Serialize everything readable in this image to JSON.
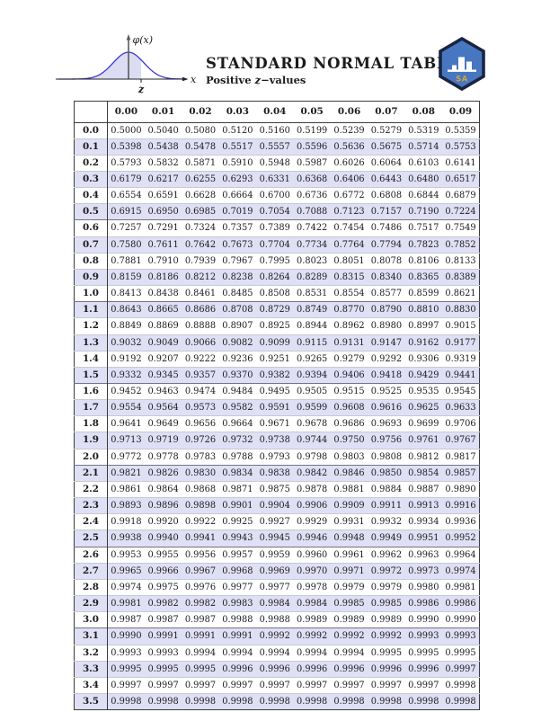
{
  "page": {
    "title": "STANDARD NORMAL TABLE",
    "subtitle_prefix": "Positive ",
    "subtitle_z": "z",
    "subtitle_suffix": "−values"
  },
  "diagram": {
    "y_axis_label": "φ(x)",
    "x_axis_label": "x",
    "z_label": "z"
  },
  "logo": {
    "label": "SA"
  },
  "colors": {
    "text": "#1b1b1b",
    "row-shade": "#dfdff5",
    "shade": "#dcdcf3",
    "curve": "#3a3acd",
    "line-dark": "#3c3c3c",
    "line-mid": "#74747e",
    "line-light": "#c9c9d2",
    "logo-blue": "#4877c2",
    "logo-border": "#1a2440",
    "logo-gold": "#d3a43b"
  },
  "table": {
    "col_headers": [
      "0.00",
      "0.01",
      "0.02",
      "0.03",
      "0.04",
      "0.05",
      "0.06",
      "0.07",
      "0.08",
      "0.09"
    ],
    "rows": [
      {
        "z": "0.0",
        "values": [
          "0.5000",
          "0.5040",
          "0.5080",
          "0.5120",
          "0.5160",
          "0.5199",
          "0.5239",
          "0.5279",
          "0.5319",
          "0.5359"
        ]
      },
      {
        "z": "0.1",
        "values": [
          "0.5398",
          "0.5438",
          "0.5478",
          "0.5517",
          "0.5557",
          "0.5596",
          "0.5636",
          "0.5675",
          "0.5714",
          "0.5753"
        ]
      },
      {
        "z": "0.2",
        "values": [
          "0.5793",
          "0.5832",
          "0.5871",
          "0.5910",
          "0.5948",
          "0.5987",
          "0.6026",
          "0.6064",
          "0.6103",
          "0.6141"
        ]
      },
      {
        "z": "0.3",
        "values": [
          "0.6179",
          "0.6217",
          "0.6255",
          "0.6293",
          "0.6331",
          "0.6368",
          "0.6406",
          "0.6443",
          "0.6480",
          "0.6517"
        ]
      },
      {
        "z": "0.4",
        "values": [
          "0.6554",
          "0.6591",
          "0.6628",
          "0.6664",
          "0.6700",
          "0.6736",
          "0.6772",
          "0.6808",
          "0.6844",
          "0.6879"
        ]
      },
      {
        "z": "0.5",
        "values": [
          "0.6915",
          "0.6950",
          "0.6985",
          "0.7019",
          "0.7054",
          "0.7088",
          "0.7123",
          "0.7157",
          "0.7190",
          "0.7224"
        ]
      },
      {
        "z": "0.6",
        "values": [
          "0.7257",
          "0.7291",
          "0.7324",
          "0.7357",
          "0.7389",
          "0.7422",
          "0.7454",
          "0.7486",
          "0.7517",
          "0.7549"
        ]
      },
      {
        "z": "0.7",
        "values": [
          "0.7580",
          "0.7611",
          "0.7642",
          "0.7673",
          "0.7704",
          "0.7734",
          "0.7764",
          "0.7794",
          "0.7823",
          "0.7852"
        ]
      },
      {
        "z": "0.8",
        "values": [
          "0.7881",
          "0.7910",
          "0.7939",
          "0.7967",
          "0.7995",
          "0.8023",
          "0.8051",
          "0.8078",
          "0.8106",
          "0.8133"
        ]
      },
      {
        "z": "0.9",
        "values": [
          "0.8159",
          "0.8186",
          "0.8212",
          "0.8238",
          "0.8264",
          "0.8289",
          "0.8315",
          "0.8340",
          "0.8365",
          "0.8389"
        ]
      },
      {
        "z": "1.0",
        "values": [
          "0.8413",
          "0.8438",
          "0.8461",
          "0.8485",
          "0.8508",
          "0.8531",
          "0.8554",
          "0.8577",
          "0.8599",
          "0.8621"
        ]
      },
      {
        "z": "1.1",
        "values": [
          "0.8643",
          "0.8665",
          "0.8686",
          "0.8708",
          "0.8729",
          "0.8749",
          "0.8770",
          "0.8790",
          "0.8810",
          "0.8830"
        ]
      },
      {
        "z": "1.2",
        "values": [
          "0.8849",
          "0.8869",
          "0.8888",
          "0.8907",
          "0.8925",
          "0.8944",
          "0.8962",
          "0.8980",
          "0.8997",
          "0.9015"
        ]
      },
      {
        "z": "1.3",
        "values": [
          "0.9032",
          "0.9049",
          "0.9066",
          "0.9082",
          "0.9099",
          "0.9115",
          "0.9131",
          "0.9147",
          "0.9162",
          "0.9177"
        ]
      },
      {
        "z": "1.4",
        "values": [
          "0.9192",
          "0.9207",
          "0.9222",
          "0.9236",
          "0.9251",
          "0.9265",
          "0.9279",
          "0.9292",
          "0.9306",
          "0.9319"
        ]
      },
      {
        "z": "1.5",
        "values": [
          "0.9332",
          "0.9345",
          "0.9357",
          "0.9370",
          "0.9382",
          "0.9394",
          "0.9406",
          "0.9418",
          "0.9429",
          "0.9441"
        ]
      },
      {
        "z": "1.6",
        "values": [
          "0.9452",
          "0.9463",
          "0.9474",
          "0.9484",
          "0.9495",
          "0.9505",
          "0.9515",
          "0.9525",
          "0.9535",
          "0.9545"
        ]
      },
      {
        "z": "1.7",
        "values": [
          "0.9554",
          "0.9564",
          "0.9573",
          "0.9582",
          "0.9591",
          "0.9599",
          "0.9608",
          "0.9616",
          "0.9625",
          "0.9633"
        ]
      },
      {
        "z": "1.8",
        "values": [
          "0.9641",
          "0.9649",
          "0.9656",
          "0.9664",
          "0.9671",
          "0.9678",
          "0.9686",
          "0.9693",
          "0.9699",
          "0.9706"
        ]
      },
      {
        "z": "1.9",
        "values": [
          "0.9713",
          "0.9719",
          "0.9726",
          "0.9732",
          "0.9738",
          "0.9744",
          "0.9750",
          "0.9756",
          "0.9761",
          "0.9767"
        ]
      },
      {
        "z": "2.0",
        "values": [
          "0.9772",
          "0.9778",
          "0.9783",
          "0.9788",
          "0.9793",
          "0.9798",
          "0.9803",
          "0.9808",
          "0.9812",
          "0.9817"
        ]
      },
      {
        "z": "2.1",
        "values": [
          "0.9821",
          "0.9826",
          "0.9830",
          "0.9834",
          "0.9838",
          "0.9842",
          "0.9846",
          "0.9850",
          "0.9854",
          "0.9857"
        ]
      },
      {
        "z": "2.2",
        "values": [
          "0.9861",
          "0.9864",
          "0.9868",
          "0.9871",
          "0.9875",
          "0.9878",
          "0.9881",
          "0.9884",
          "0.9887",
          "0.9890"
        ]
      },
      {
        "z": "2.3",
        "values": [
          "0.9893",
          "0.9896",
          "0.9898",
          "0.9901",
          "0.9904",
          "0.9906",
          "0.9909",
          "0.9911",
          "0.9913",
          "0.9916"
        ]
      },
      {
        "z": "2.4",
        "values": [
          "0.9918",
          "0.9920",
          "0.9922",
          "0.9925",
          "0.9927",
          "0.9929",
          "0.9931",
          "0.9932",
          "0.9934",
          "0.9936"
        ]
      },
      {
        "z": "2.5",
        "values": [
          "0.9938",
          "0.9940",
          "0.9941",
          "0.9943",
          "0.9945",
          "0.9946",
          "0.9948",
          "0.9949",
          "0.9951",
          "0.9952"
        ]
      },
      {
        "z": "2.6",
        "values": [
          "0.9953",
          "0.9955",
          "0.9956",
          "0.9957",
          "0.9959",
          "0.9960",
          "0.9961",
          "0.9962",
          "0.9963",
          "0.9964"
        ]
      },
      {
        "z": "2.7",
        "values": [
          "0.9965",
          "0.9966",
          "0.9967",
          "0.9968",
          "0.9969",
          "0.9970",
          "0.9971",
          "0.9972",
          "0.9973",
          "0.9974"
        ]
      },
      {
        "z": "2.8",
        "values": [
          "0.9974",
          "0.9975",
          "0.9976",
          "0.9977",
          "0.9977",
          "0.9978",
          "0.9979",
          "0.9979",
          "0.9980",
          "0.9981"
        ]
      },
      {
        "z": "2.9",
        "values": [
          "0.9981",
          "0.9982",
          "0.9982",
          "0.9983",
          "0.9984",
          "0.9984",
          "0.9985",
          "0.9985",
          "0.9986",
          "0.9986"
        ]
      },
      {
        "z": "3.0",
        "values": [
          "0.9987",
          "0.9987",
          "0.9987",
          "0.9988",
          "0.9988",
          "0.9989",
          "0.9989",
          "0.9989",
          "0.9990",
          "0.9990"
        ]
      },
      {
        "z": "3.1",
        "values": [
          "0.9990",
          "0.9991",
          "0.9991",
          "0.9991",
          "0.9992",
          "0.9992",
          "0.9992",
          "0.9992",
          "0.9993",
          "0.9993"
        ]
      },
      {
        "z": "3.2",
        "values": [
          "0.9993",
          "0.9993",
          "0.9994",
          "0.9994",
          "0.9994",
          "0.9994",
          "0.9994",
          "0.9995",
          "0.9995",
          "0.9995"
        ]
      },
      {
        "z": "3.3",
        "values": [
          "0.9995",
          "0.9995",
          "0.9995",
          "0.9996",
          "0.9996",
          "0.9996",
          "0.9996",
          "0.9996",
          "0.9996",
          "0.9997"
        ]
      },
      {
        "z": "3.4",
        "values": [
          "0.9997",
          "0.9997",
          "0.9997",
          "0.9997",
          "0.9997",
          "0.9997",
          "0.9997",
          "0.9997",
          "0.9997",
          "0.9998"
        ]
      },
      {
        "z": "3.5",
        "values": [
          "0.9998",
          "0.9998",
          "0.9998",
          "0.9998",
          "0.9998",
          "0.9998",
          "0.9998",
          "0.9998",
          "0.9998",
          "0.9998"
        ]
      }
    ]
  }
}
